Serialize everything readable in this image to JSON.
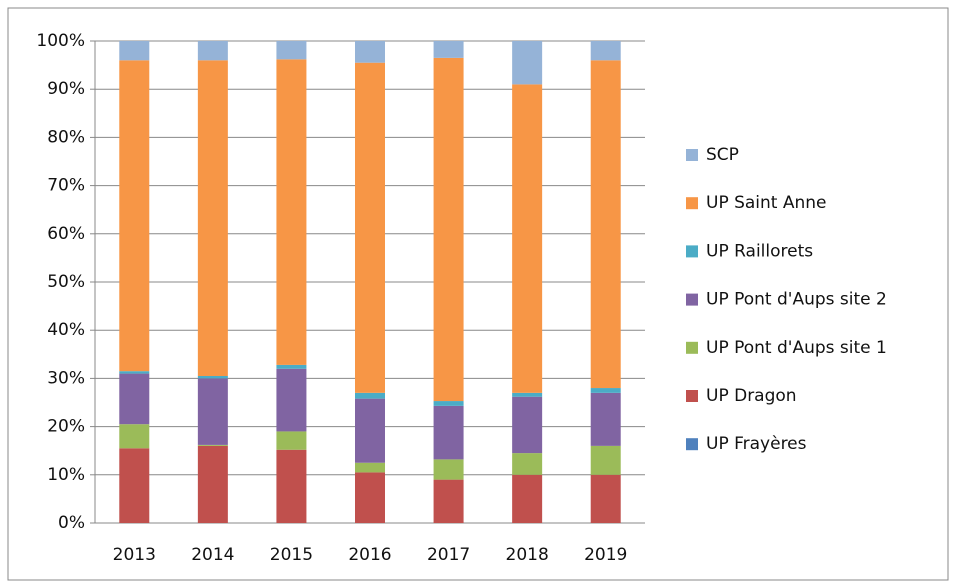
{
  "chart_data": {
    "type": "bar",
    "stacked": true,
    "categories": [
      "2013",
      "2014",
      "2015",
      "2016",
      "2017",
      "2018",
      "2019"
    ],
    "series": [
      {
        "name": "UP Frayères",
        "color": "#4f81bd",
        "values": [
          0,
          0,
          0,
          0,
          0,
          0,
          0
        ]
      },
      {
        "name": "UP Dragon",
        "color": "#c0504d",
        "values": [
          15.5,
          16,
          15.2,
          10.5,
          9,
          10,
          10
        ]
      },
      {
        "name": "UP Pont d'Aups site 1",
        "color": "#9bbb59",
        "values": [
          5,
          0.2,
          3.8,
          2,
          4.2,
          4.5,
          6
        ]
      },
      {
        "name": "UP Pont d'Aups site 2",
        "color": "#8064a2",
        "values": [
          10.5,
          13.8,
          13,
          13.3,
          11.1,
          11.7,
          11
        ]
      },
      {
        "name": "UP Raillorets",
        "color": "#4bacc6",
        "values": [
          0.5,
          0.5,
          0.8,
          1.2,
          1,
          0.8,
          1
        ]
      },
      {
        "name": "UP Saint Anne",
        "color": "#f79646",
        "values": [
          64.5,
          65.5,
          63.4,
          68.5,
          71.2,
          64,
          68
        ]
      },
      {
        "name": "SCP",
        "color": "#95b3d7",
        "values": [
          4,
          4,
          3.8,
          4.5,
          3.5,
          9,
          4
        ]
      }
    ],
    "ylim": [
      0,
      100
    ],
    "yticks": [
      {
        "value": 0,
        "label": "0%"
      },
      {
        "value": 10,
        "label": "10%"
      },
      {
        "value": 20,
        "label": "20%"
      },
      {
        "value": 30,
        "label": "30%"
      },
      {
        "value": 40,
        "label": "40%"
      },
      {
        "value": 50,
        "label": "50%"
      },
      {
        "value": 60,
        "label": "60%"
      },
      {
        "value": 70,
        "label": "70%"
      },
      {
        "value": 80,
        "label": "80%"
      },
      {
        "value": 90,
        "label": "90%"
      },
      {
        "value": 100,
        "label": "100%"
      }
    ],
    "grid": true,
    "legend": "right"
  }
}
